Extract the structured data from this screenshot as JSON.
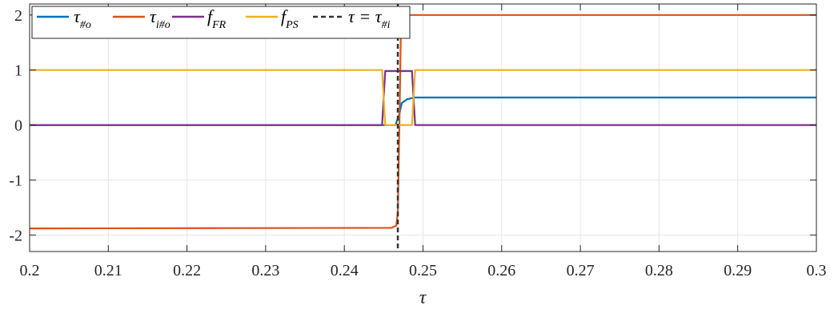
{
  "chart_data": {
    "type": "line",
    "xlabel": "τ",
    "xlim": [
      0.2,
      0.3
    ],
    "ylim": [
      -2.3,
      2.2
    ],
    "x_ticks": [
      "0.2",
      "0.21",
      "0.22",
      "0.23",
      "0.24",
      "0.25",
      "0.26",
      "0.27",
      "0.28",
      "0.29",
      "0.3"
    ],
    "y_ticks": [
      "2",
      "1",
      "0",
      "-1",
      "-2"
    ],
    "grid": true,
    "legend_placement": "top-left",
    "legend": [
      {
        "main": "τ",
        "sub": "#o",
        "style": "solid",
        "color": "#0072BD"
      },
      {
        "main": "τ",
        "sub": "i#o",
        "style": "solid",
        "color": "#D95319"
      },
      {
        "main": "f",
        "sub": "FR",
        "style": "solid",
        "color": "#7E2F8E"
      },
      {
        "main": "f",
        "sub": "PS",
        "style": "solid",
        "color": "#EDB120"
      },
      {
        "main": "τ = τ",
        "sub": "#i",
        "style": "dashed",
        "color": "#333333"
      }
    ],
    "series": [
      {
        "name": "τ#o",
        "color": "#0072BD",
        "points": [
          [
            0.2,
            0
          ],
          [
            0.2465,
            0.0
          ],
          [
            0.247,
            0.2
          ],
          [
            0.2473,
            0.4
          ],
          [
            0.248,
            0.47
          ],
          [
            0.249,
            0.5
          ],
          [
            0.3,
            0.5
          ]
        ]
      },
      {
        "name": "τi#o",
        "color": "#D95319",
        "points": [
          [
            0.2,
            -1.88
          ],
          [
            0.246,
            -1.87
          ],
          [
            0.2466,
            -1.83
          ],
          [
            0.2468,
            -1.6
          ],
          [
            0.247,
            0.0
          ],
          [
            0.2472,
            1.8
          ],
          [
            0.2475,
            1.97
          ],
          [
            0.248,
            2.0
          ],
          [
            0.3,
            2.0
          ]
        ]
      },
      {
        "name": "fFR",
        "color": "#7E2F8E",
        "points": [
          [
            0.2,
            0
          ],
          [
            0.2448,
            0
          ],
          [
            0.2452,
            0.98
          ],
          [
            0.2486,
            0.98
          ],
          [
            0.249,
            0.0
          ],
          [
            0.3,
            0
          ]
        ]
      },
      {
        "name": "fPS",
        "color": "#EDB120",
        "points": [
          [
            0.2,
            1
          ],
          [
            0.2448,
            1
          ],
          [
            0.2452,
            0.0
          ],
          [
            0.2486,
            0.0
          ],
          [
            0.249,
            1.0
          ],
          [
            0.3,
            1
          ]
        ]
      }
    ],
    "vline": {
      "name": "τ = τ#i",
      "x": 0.2468,
      "color": "#333333",
      "style": "dashed"
    }
  }
}
